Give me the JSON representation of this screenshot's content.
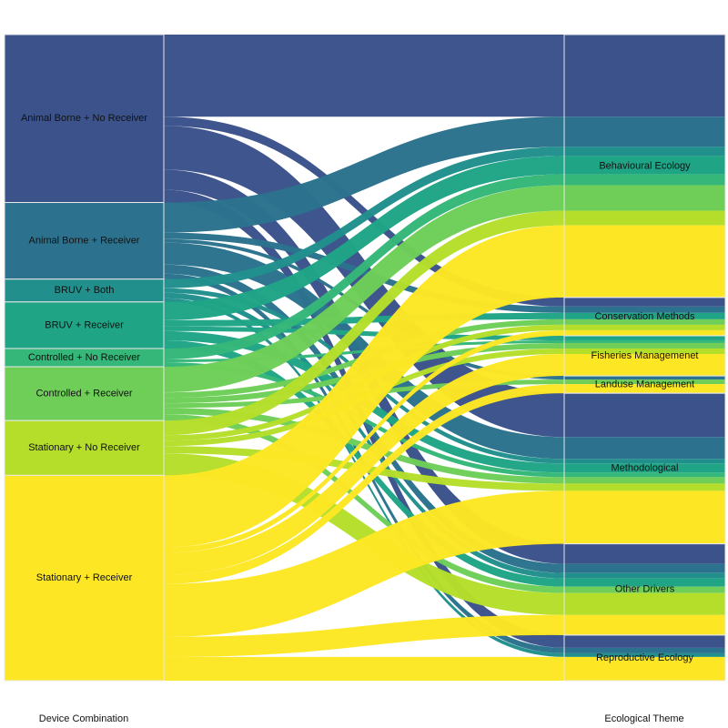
{
  "chart_data": {
    "type": "alluvial",
    "axis_labels": [
      "Device Combination",
      "Ecological Theme"
    ],
    "categories": [
      "Behavioural Ecology",
      "Conservation Methods",
      "Fisheries Managemenet",
      "Landuse Management",
      "Methodological",
      "Other Drivers",
      "Reproductive Ecology"
    ],
    "series": [
      {
        "name": "Animal Borne + No Receiver",
        "color": "#3b528b",
        "values": [
          90,
          10,
          0,
          0,
          48,
          22,
          14
        ]
      },
      {
        "name": "Animal Borne + Receiver",
        "color": "#2c728e",
        "values": [
          33,
          7,
          0,
          4,
          24,
          10,
          6
        ]
      },
      {
        "name": "BRUV + Both",
        "color": "#21908d",
        "values": [
          10,
          0,
          0,
          0,
          5,
          6,
          4
        ]
      },
      {
        "name": "BRUV + Receiver",
        "color": "#20a486",
        "values": [
          20,
          7,
          5,
          0,
          10,
          9,
          0
        ]
      },
      {
        "name": "Controlled + No Receiver",
        "color": "#35b779",
        "values": [
          12,
          0,
          3,
          0,
          5,
          0,
          0
        ]
      },
      {
        "name": "Controlled + Receiver",
        "color": "#6ece58",
        "values": [
          28,
          6,
          6,
          5,
          7,
          7,
          0
        ]
      },
      {
        "name": "Stationary + No Receiver",
        "color": "#b5de2b",
        "values": [
          16,
          6,
          6,
          0,
          8,
          24,
          0
        ]
      },
      {
        "name": "Stationary + Receiver",
        "color": "#fde725",
        "values": [
          79,
          6,
          24,
          10,
          58,
          22,
          26
        ]
      }
    ]
  }
}
